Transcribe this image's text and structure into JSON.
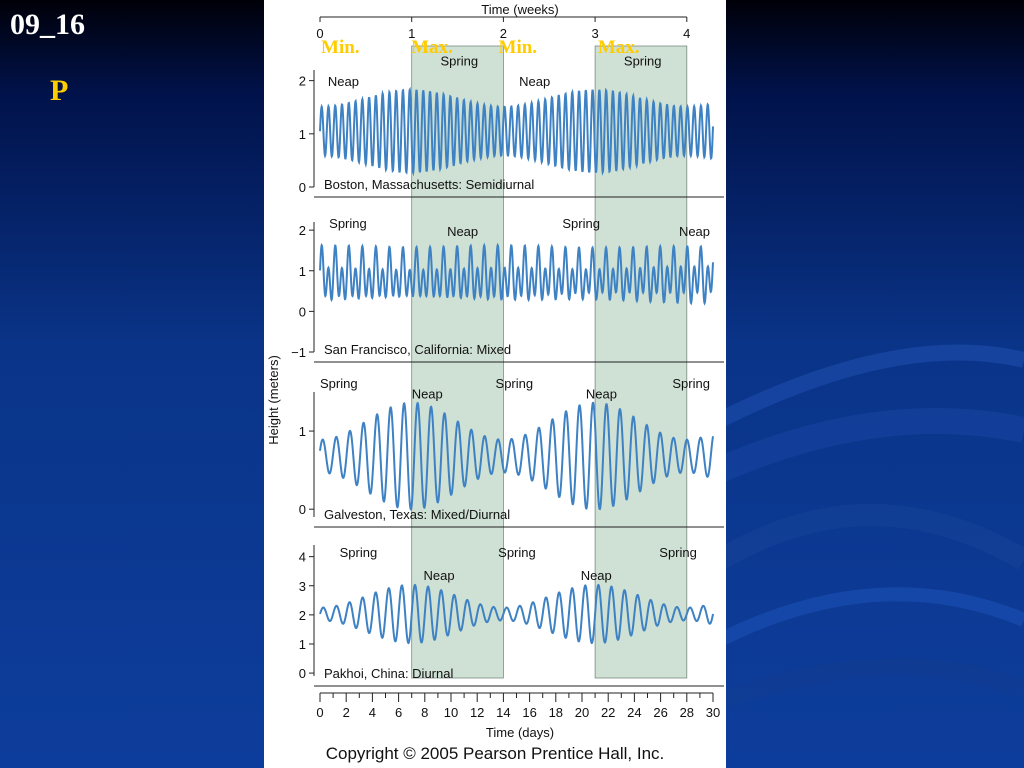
{
  "slide": {
    "id": "09_16",
    "letter": "P"
  },
  "figure": {
    "copyright": "Copyright © 2005 Pearson Prentice Hall, Inc."
  },
  "colors": {
    "line": "#3e82c4",
    "spring_band": "#cfe0d4",
    "marker_text": "#ffcc00",
    "slide_letter": "#ffcc00"
  },
  "chart_data": {
    "type": "line",
    "title": "",
    "xlabel": "Time (days)",
    "x2label": "Time (weeks)",
    "ylabel": "Height (meters)",
    "xlim": [
      0,
      30
    ],
    "xticks": [
      "0",
      "2",
      "4",
      "6",
      "8",
      "10",
      "12",
      "14",
      "16",
      "18",
      "20",
      "22",
      "24",
      "26",
      "28",
      "30"
    ],
    "weeks": [
      "0",
      "1",
      "2",
      "3",
      "4"
    ],
    "phase_markers": [
      "Min.",
      "Max.",
      "Min.",
      "Max."
    ],
    "spring_bands_days": [
      [
        7,
        14
      ],
      [
        21,
        28
      ]
    ],
    "panels": [
      {
        "name": "Boston, Massachusetts: Semidiurnal",
        "ylim": [
          0,
          2.2
        ],
        "yticks": [
          "0",
          "1",
          "2"
        ],
        "labels": [
          {
            "text": "Neap",
            "x": 0.6,
            "y": 1.9
          },
          {
            "text": "Spring",
            "x": 9.2,
            "y": 2.28
          },
          {
            "text": "Neap",
            "x": 15.2,
            "y": 1.9
          },
          {
            "text": "Spring",
            "x": 23.2,
            "y": 2.28
          }
        ],
        "series": {
          "mean": 1.05,
          "period_days": 0.517,
          "amp_spring": 0.78,
          "amp_neap": 0.46,
          "diurnal": 0
        }
      },
      {
        "name": "San Francisco, California: Mixed",
        "ylim": [
          -1,
          2.2
        ],
        "yticks": [
          "-1",
          "0",
          "1",
          "2"
        ],
        "labels": [
          {
            "text": "Spring",
            "x": 0.7,
            "y": 2.05
          },
          {
            "text": "Neap",
            "x": 9.7,
            "y": 1.85
          },
          {
            "text": "Spring",
            "x": 18.5,
            "y": 2.05
          },
          {
            "text": "Neap",
            "x": 27.4,
            "y": 1.85
          }
        ],
        "series": {
          "mean": 0.85,
          "period_days": 0.517,
          "amp_spring": 0.45,
          "amp_neap": 0.5,
          "diurnal": 0.28
        }
      },
      {
        "name": "Galveston, Texas: Mixed/Diurnal",
        "ylim": [
          -0.1,
          1.5
        ],
        "yticks": [
          "0",
          "1"
        ],
        "labels": [
          {
            "text": "Spring",
            "x": 0.0,
            "y": 1.55
          },
          {
            "text": "Neap",
            "x": 7.0,
            "y": 1.42
          },
          {
            "text": "Spring",
            "x": 13.4,
            "y": 1.55
          },
          {
            "text": "Neap",
            "x": 20.3,
            "y": 1.42
          },
          {
            "text": "Spring",
            "x": 26.9,
            "y": 1.55
          }
        ],
        "series": {
          "mean": 0.68,
          "period_days": 1.03,
          "amp_spring": 0.58,
          "amp_neap": 0.1,
          "diurnal": 0.12
        }
      },
      {
        "name": "Pakhoi, China: Diurnal",
        "ylim": [
          -0.1,
          4.4
        ],
        "yticks": [
          "0",
          "1",
          "2",
          "3",
          "4"
        ],
        "labels": [
          {
            "text": "Spring",
            "x": 1.5,
            "y": 3.98
          },
          {
            "text": "Neap",
            "x": 7.9,
            "y": 3.2
          },
          {
            "text": "Spring",
            "x": 13.6,
            "y": 3.98
          },
          {
            "text": "Neap",
            "x": 19.9,
            "y": 3.2
          },
          {
            "text": "Spring",
            "x": 25.9,
            "y": 3.98
          }
        ],
        "series": {
          "mean": 2.03,
          "period_days": 1.0,
          "amp_spring": 1.0,
          "amp_neap": 0.22,
          "diurnal": 0
        }
      }
    ]
  }
}
